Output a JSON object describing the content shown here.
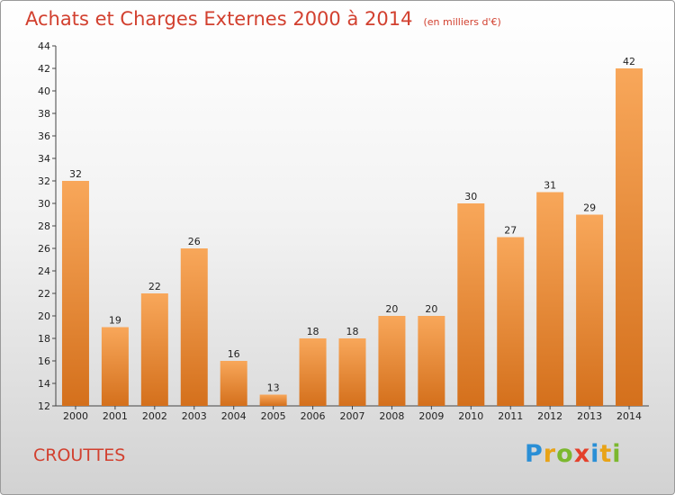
{
  "header": {
    "title": "Achats et Charges Externes 2000 à 2014",
    "subtitle": "(en milliers d'€)"
  },
  "footer": {
    "commune": "CROUTTES",
    "logo": [
      "P",
      "r",
      "o",
      "x",
      "i",
      "t",
      "i"
    ]
  },
  "colors": {
    "bar_light": "#f8a75a",
    "bar_dark": "#d4701c",
    "title": "#d2402f"
  },
  "chart_data": {
    "type": "bar",
    "title": "Achats et Charges Externes 2000 à 2014",
    "subtitle": "(en milliers d'€)",
    "categories": [
      "2000",
      "2001",
      "2002",
      "2003",
      "2004",
      "2005",
      "2006",
      "2007",
      "2008",
      "2009",
      "2010",
      "2011",
      "2012",
      "2013",
      "2014"
    ],
    "values": [
      32,
      19,
      22,
      26,
      16,
      13,
      18,
      18,
      20,
      20,
      30,
      27,
      31,
      29,
      42
    ],
    "xlabel": "",
    "ylabel": "",
    "ylim": [
      12,
      44
    ],
    "yticks": [
      12,
      14,
      16,
      18,
      20,
      22,
      24,
      26,
      28,
      30,
      32,
      34,
      36,
      38,
      40,
      42,
      44
    ],
    "grid": false,
    "legend": "none"
  }
}
